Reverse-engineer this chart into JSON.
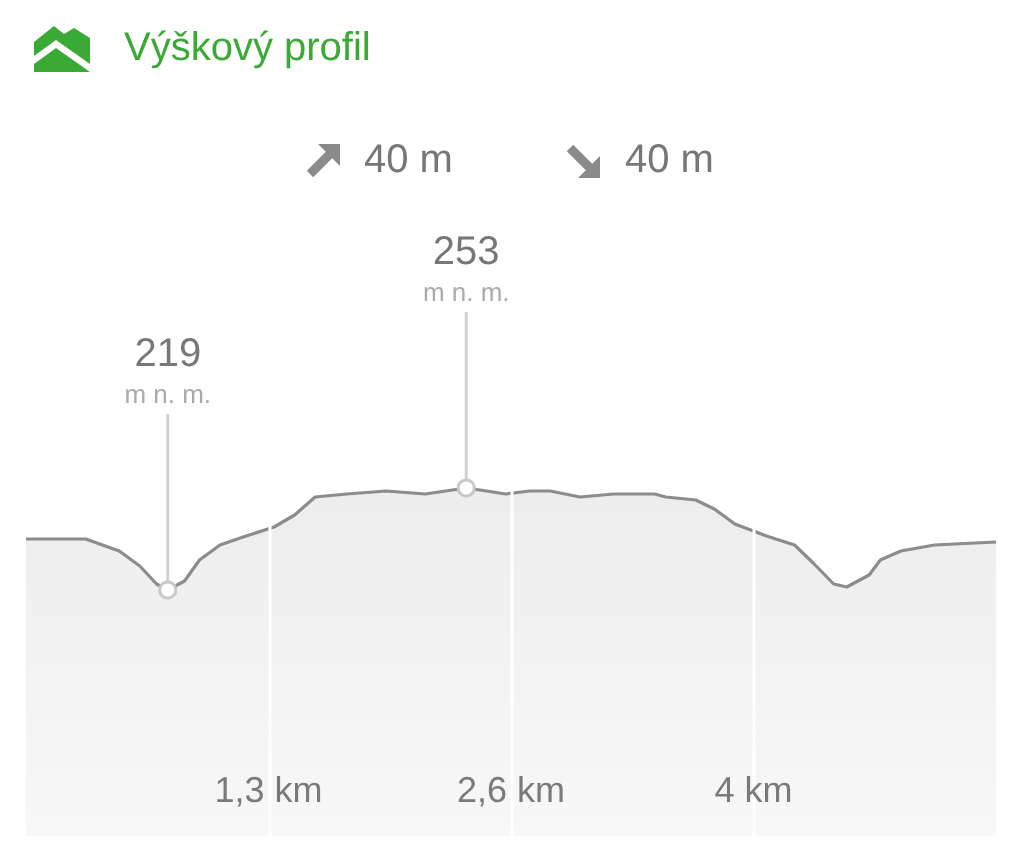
{
  "chart_data": {
    "type": "area",
    "title": "Výškový profil",
    "x": [
      0,
      0.32,
      0.5,
      0.61,
      0.7,
      0.76,
      0.85,
      0.93,
      1.04,
      1.18,
      1.33,
      1.44,
      1.55,
      1.72,
      1.93,
      2.14,
      2.25,
      2.36,
      2.47,
      2.57,
      2.7,
      2.81,
      2.97,
      3.15,
      3.37,
      3.43,
      3.59,
      3.69,
      3.8,
      3.97,
      4.12,
      4.22,
      4.33,
      4.4,
      4.52,
      4.58,
      4.69,
      4.87,
      5.2
    ],
    "values": [
      236,
      236,
      232,
      227,
      221,
      219,
      222,
      229,
      234,
      237,
      240,
      244,
      250,
      251,
      252,
      251,
      252,
      253,
      252,
      251,
      252,
      252,
      250,
      251,
      251,
      250,
      249,
      246,
      241,
      237,
      234,
      228,
      221,
      220,
      224,
      229,
      232,
      234,
      235
    ],
    "value_labels": [
      null,
      null,
      null,
      null,
      null,
      "219\nm n. m.",
      null,
      null,
      null,
      null,
      null,
      null,
      null,
      null,
      null,
      null,
      null,
      "253\nm n. m.",
      null,
      null,
      null,
      null,
      null,
      null,
      null,
      null,
      null,
      null,
      null,
      null,
      null,
      null,
      null,
      null,
      null,
      null,
      null,
      null,
      null
    ],
    "color": "#8c8c8c",
    "xlim": [
      0,
      5.2
    ],
    "xticks": [
      {
        "value": 1.3,
        "label": "1,3 km"
      },
      {
        "value": 2.6,
        "label": "2,6 km"
      },
      {
        "value": 3.9,
        "label": "4 km"
      }
    ],
    "ylim": [
      137,
      337
    ],
    "tick_labels": "x",
    "grid": "x",
    "marker": "none",
    "annotations": [
      "40 m",
      "40 m"
    ]
  }
}
